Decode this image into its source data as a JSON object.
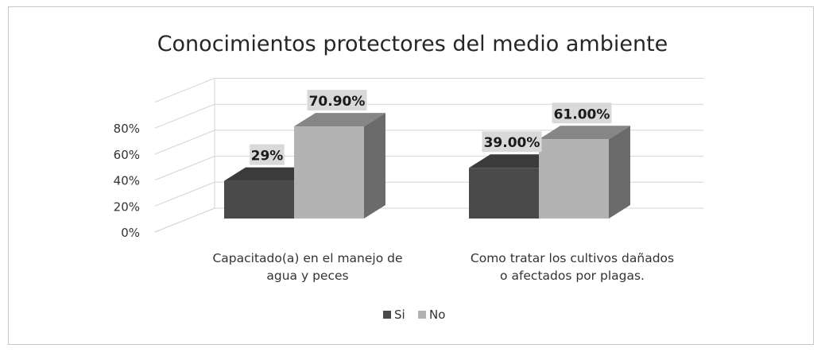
{
  "chart_data": {
    "type": "bar",
    "title": "Conocimientos protectores del medio ambiente",
    "xlabel": "",
    "ylabel": "",
    "categories": [
      [
        "Capacitado(a) en el manejo de",
        "agua y peces"
      ],
      [
        "Como tratar los cultivos dañados",
        "o afectados por plagas."
      ]
    ],
    "series": [
      {
        "name": "Si",
        "values": [
          29,
          39.0
        ],
        "labels": [
          "29%",
          "39.00%"
        ],
        "color": "#4a4a4a"
      },
      {
        "name": "No",
        "values": [
          70.9,
          61.0
        ],
        "labels": [
          "70.90%",
          "61.00%"
        ],
        "color": "#b3b3b3"
      }
    ],
    "ylim": [
      0,
      100
    ],
    "yticks": [
      "0%",
      "20%",
      "40%",
      "60%",
      "80%"
    ],
    "grid": true,
    "legend": "bottom",
    "style": "3d-clustered-column"
  }
}
